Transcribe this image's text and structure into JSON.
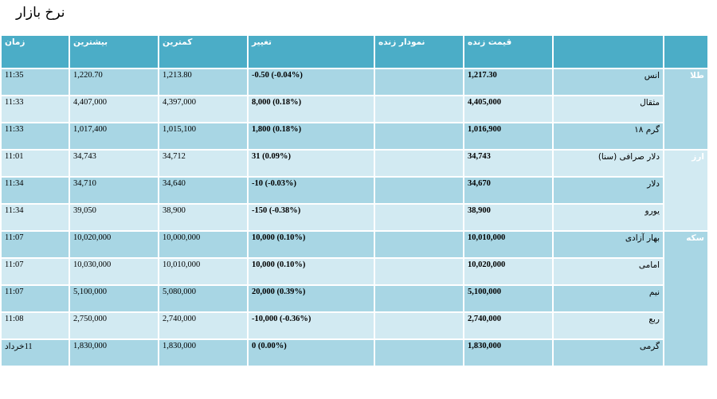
{
  "page": {
    "title": "نرخ بازار"
  },
  "headers": {
    "group": "",
    "name": "",
    "live_price": "قیمت زنده",
    "live_chart": "نمودار زنده",
    "change": "تغییر",
    "low": "کمترین",
    "high": "بیشترین",
    "time": "زمان"
  },
  "groups": [
    {
      "label": "طلا",
      "rows": [
        {
          "name": "انس",
          "price": "1,217.30",
          "change": "-0.50 (-0.04%)",
          "low": "1,213.80",
          "high": "1,220.70",
          "time": "11:35"
        },
        {
          "name": "مثقال",
          "price": "4,405,000",
          "change": "8,000 (0.18%)",
          "low": "4,397,000",
          "high": "4,407,000",
          "time": "11:33"
        },
        {
          "name": "گرم ۱۸",
          "price": "1,016,900",
          "change": "1,800 (0.18%)",
          "low": "1,015,100",
          "high": "1,017,400",
          "time": "11:33"
        }
      ]
    },
    {
      "label": "ارز",
      "rows": [
        {
          "name": "دلار صرافی (سنا)",
          "price": "34,743",
          "change": "31 (0.09%)",
          "low": "34,712",
          "high": "34,743",
          "time": "11:01"
        },
        {
          "name": "دلار",
          "price": "34,670",
          "change": "-10 (-0.03%)",
          "low": "34,640",
          "high": "34,710",
          "time": "11:34"
        },
        {
          "name": "یورو",
          "price": "38,900",
          "change": "-150 (-0.38%)",
          "low": "38,900",
          "high": "39,050",
          "time": "11:34"
        }
      ]
    },
    {
      "label": "سکه",
      "rows": [
        {
          "name": "بهار آزادی",
          "price": "10,010,000",
          "change": "10,000 (0.10%)",
          "low": "10,000,000",
          "high": "10,020,000",
          "time": "11:07"
        },
        {
          "name": "امامی",
          "price": "10,020,000",
          "change": "10,000 (0.10%)",
          "low": "10,010,000",
          "high": "10,030,000",
          "time": "11:07"
        },
        {
          "name": "نیم",
          "price": "5,100,000",
          "change": "20,000 (0.39%)",
          "low": "5,080,000",
          "high": "5,100,000",
          "time": "11:07"
        },
        {
          "name": "ربع",
          "price": "2,740,000",
          "change": "-10,000 (-0.36%)",
          "low": "2,740,000",
          "high": "2,750,000",
          "time": "11:08"
        },
        {
          "name": "گرمی",
          "price": "1,830,000",
          "change": "0 (0.00%)",
          "low": "1,830,000",
          "high": "1,830,000",
          "time": "11خرداد"
        }
      ]
    }
  ]
}
